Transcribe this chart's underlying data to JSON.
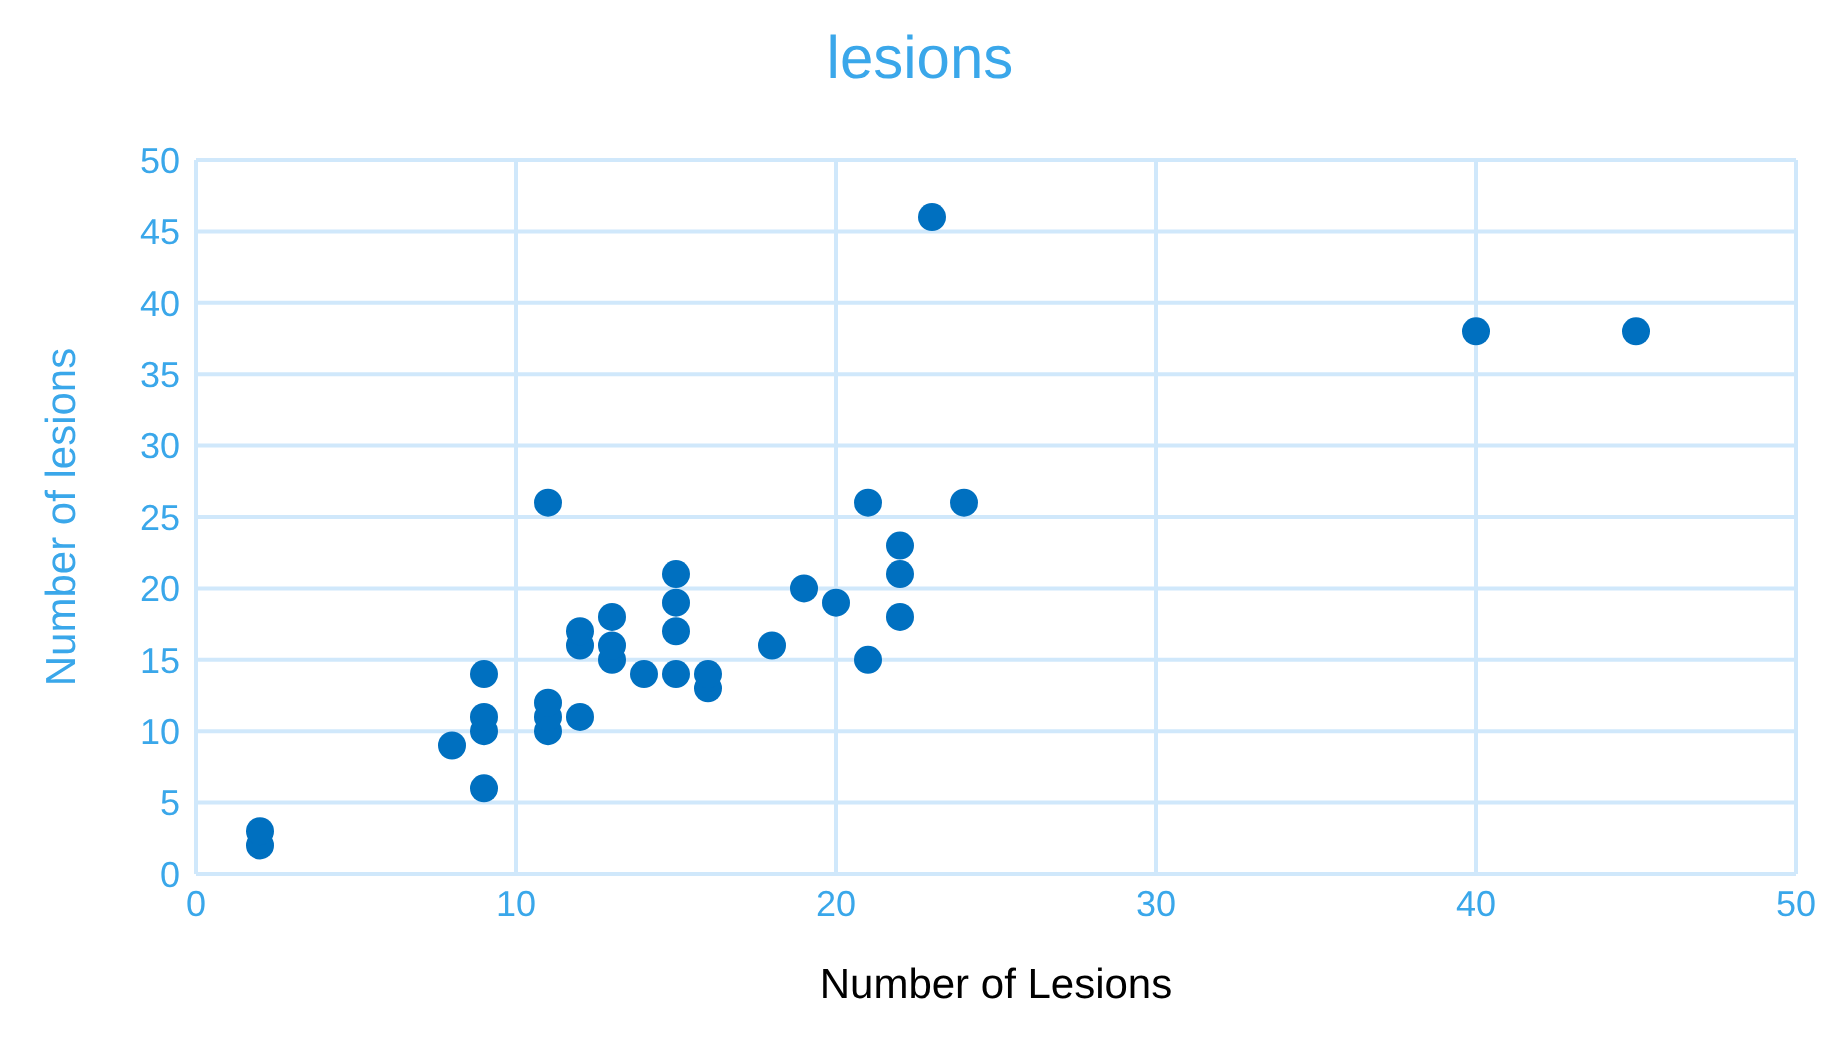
{
  "chart_data": {
    "type": "scatter",
    "title": "lesions",
    "xlabel": "Number of Lesions",
    "ylabel": "Number of lesions",
    "x": [
      2,
      2,
      8,
      9,
      9,
      9,
      9,
      11,
      11,
      11,
      11,
      12,
      12,
      12,
      13,
      13,
      13,
      14,
      15,
      15,
      15,
      15,
      16,
      16,
      18,
      19,
      20,
      21,
      21,
      22,
      22,
      22,
      23,
      24,
      40,
      45
    ],
    "values": [
      2,
      3,
      9,
      6,
      10,
      11,
      14,
      10,
      11,
      12,
      26,
      11,
      16,
      17,
      15,
      16,
      18,
      14,
      14,
      17,
      19,
      21,
      13,
      14,
      16,
      20,
      19,
      15,
      26,
      18,
      21,
      23,
      46,
      26,
      38,
      38
    ],
    "color": "#0070c0",
    "marker": "circle",
    "grid": true,
    "xlim": [
      0,
      50
    ],
    "xticks": [
      0,
      10,
      20,
      30,
      40,
      50
    ],
    "ylim": [
      0,
      50
    ],
    "yticks": [
      0,
      5,
      10,
      15,
      20,
      25,
      30,
      35,
      40,
      45,
      50
    ]
  }
}
